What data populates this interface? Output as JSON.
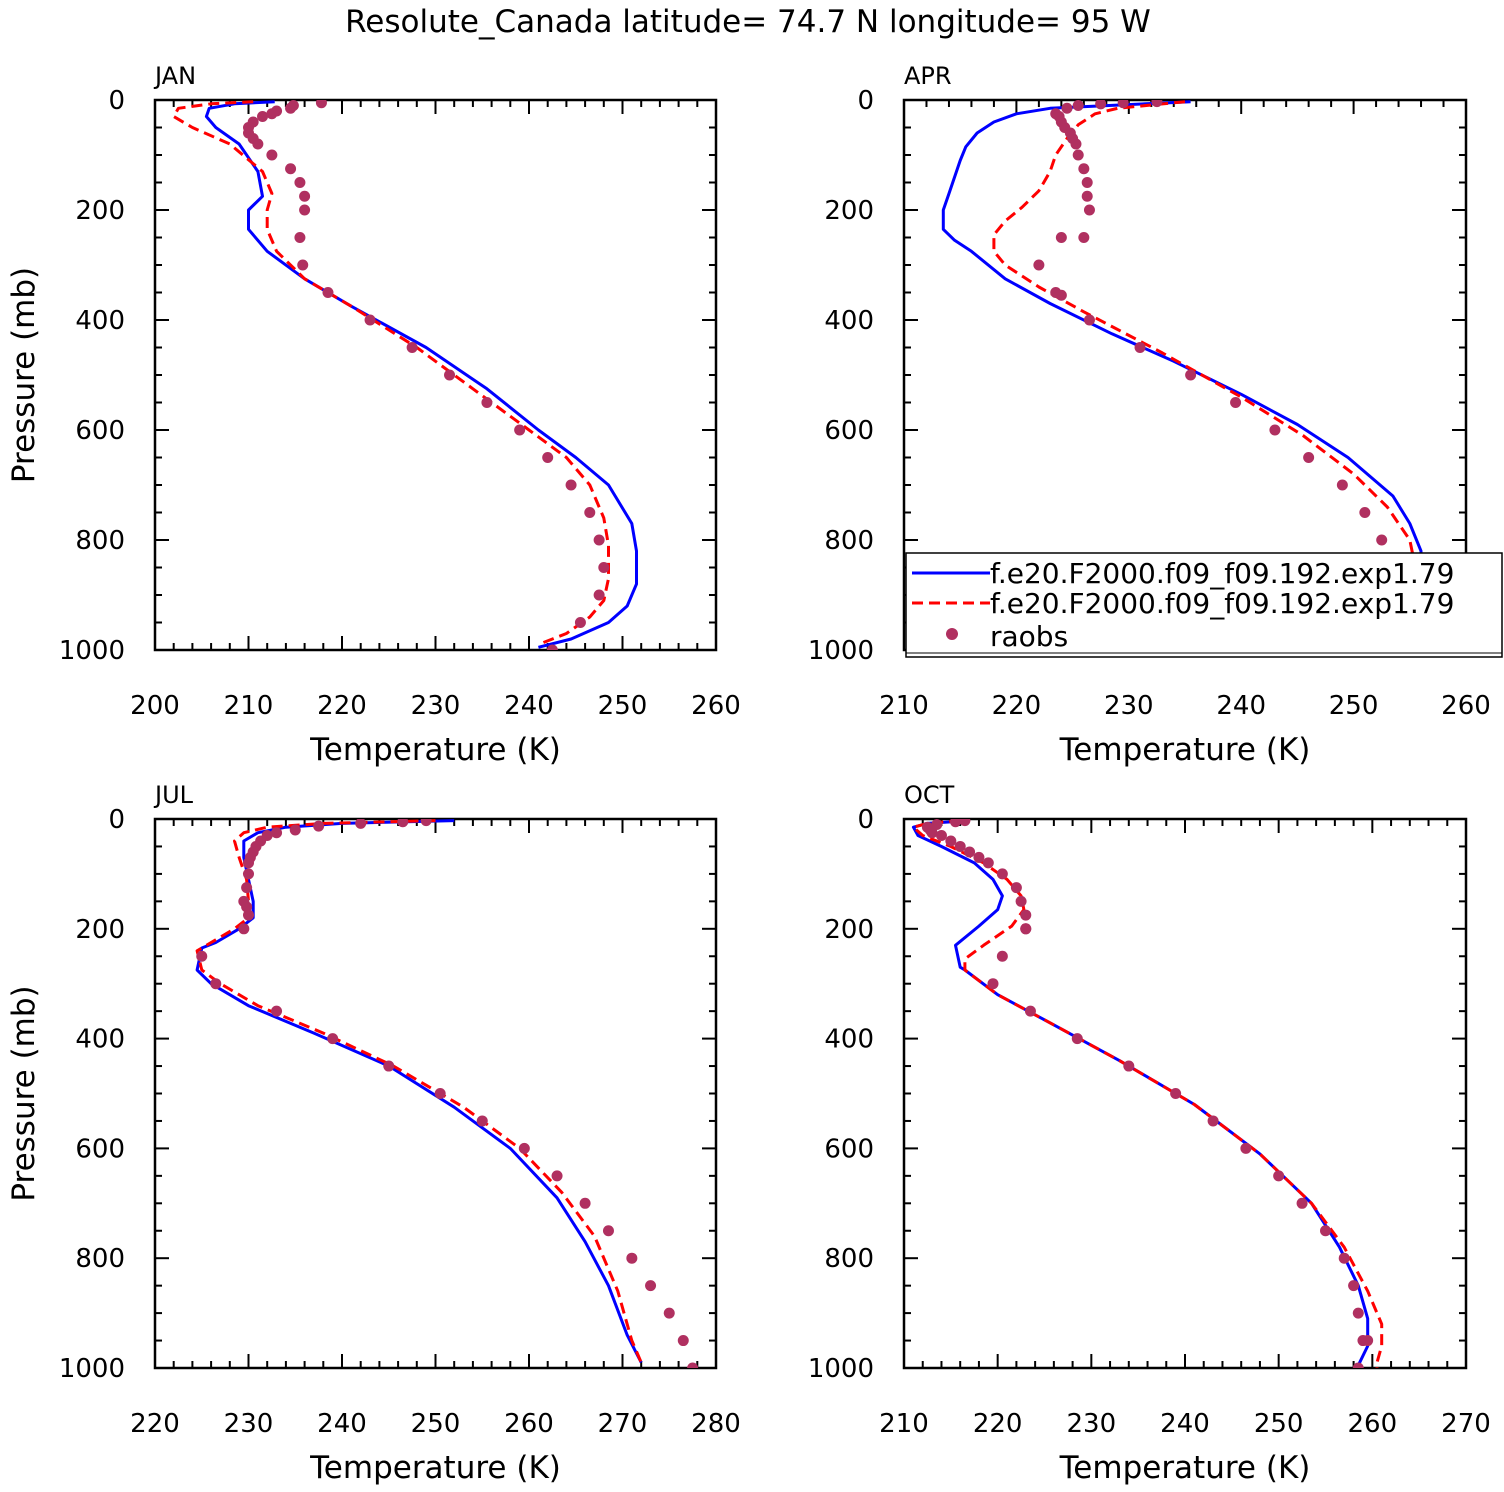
{
  "figure": {
    "title": "Resolute_Canada  latitude= 74.7 N longitude= 95 W"
  },
  "colors": {
    "model_1": "#0000ff",
    "model_2": "#ff0000",
    "raobs": "#b03060",
    "axes": "#000000"
  },
  "legend": {
    "placement": "lower-right of APR panel",
    "entries": [
      {
        "label": "f.e20.F2000.f09_f09.192.exp1.79",
        "style": "solid",
        "color": "#0000ff"
      },
      {
        "label": "f.e20.F2000.f09_f09.192.exp1.79",
        "style": "dashed",
        "color": "#ff0000"
      },
      {
        "label": "raobs",
        "style": "marker",
        "color": "#b03060"
      }
    ]
  },
  "chart_data": [
    {
      "type": "line",
      "panel": "JAN",
      "xlabel": "Temperature (K)",
      "ylabel": "Pressure (mb)",
      "xlim": [
        200,
        260
      ],
      "ylim": [
        0,
        1000
      ],
      "y_inverted": true,
      "xticks": [
        200,
        210,
        220,
        230,
        240,
        250,
        260
      ],
      "yticks": [
        0,
        200,
        400,
        600,
        800,
        1000
      ],
      "series": [
        {
          "style": "solid",
          "x": [
            212.8,
            208.5,
            205.8,
            205.5,
            206.5,
            209.0,
            211.0,
            211.5,
            210.0,
            210.0,
            212.0,
            216.0,
            221.0,
            229.0,
            235.5,
            241.0,
            245.0,
            248.5,
            251.0,
            251.5,
            251.5,
            250.5,
            248.5,
            244.5,
            241.0
          ],
          "y": [
            3,
            7,
            15,
            30,
            50,
            80,
            130,
            175,
            200,
            235,
            275,
            325,
            375,
            450,
            525,
            600,
            650,
            700,
            770,
            820,
            880,
            920,
            950,
            980,
            995
          ]
        },
        {
          "style": "dashed",
          "x": [
            210.5,
            206.0,
            202.5,
            202.0,
            204.0,
            208.0,
            211.5,
            212.5,
            212.0,
            212.0,
            213.0,
            216.0,
            221.0,
            228.0,
            234.0,
            240.0,
            244.0,
            246.5,
            248.0,
            248.5,
            248.5,
            248.0,
            246.5,
            244.0,
            241.0
          ],
          "y": [
            3,
            7,
            15,
            30,
            50,
            80,
            130,
            170,
            200,
            235,
            275,
            325,
            375,
            450,
            525,
            600,
            650,
            700,
            760,
            810,
            870,
            910,
            940,
            970,
            990
          ]
        }
      ],
      "points": {
        "x": [
          217.8,
          214.8,
          214.5,
          213.0,
          212.5,
          211.5,
          210.5,
          210.0,
          210.0,
          210.5,
          211.0,
          212.5,
          214.5,
          215.5,
          216.0,
          216.0,
          215.5,
          215.8,
          218.5,
          223.0,
          227.5,
          231.5,
          235.5,
          239.0,
          242.0,
          244.5,
          246.5,
          247.5,
          248.0,
          247.5,
          245.5,
          242.5
        ],
        "y": [
          5,
          10,
          15,
          20,
          25,
          30,
          40,
          50,
          60,
          70,
          80,
          100,
          125,
          150,
          175,
          200,
          250,
          300,
          350,
          400,
          450,
          500,
          550,
          600,
          650,
          700,
          750,
          800,
          850,
          900,
          950,
          1000
        ]
      }
    },
    {
      "type": "line",
      "panel": "APR",
      "xlabel": "Temperature (K)",
      "ylabel": "",
      "xlim": [
        210,
        260
      ],
      "ylim": [
        0,
        1000
      ],
      "y_inverted": true,
      "xticks": [
        210,
        220,
        230,
        240,
        250,
        260
      ],
      "yticks": [
        0,
        200,
        400,
        600,
        800,
        1000
      ],
      "series": [
        {
          "style": "solid",
          "x": [
            235.5,
            223.0,
            220.0,
            218.0,
            216.5,
            215.5,
            215.0,
            214.5,
            214.0,
            213.5,
            213.5,
            214.5,
            216.0,
            219.0,
            223.0,
            228.5,
            234.0,
            240.0,
            245.0,
            249.5,
            253.5,
            255.0,
            256.0,
            256.0,
            255.5,
            254.5,
            253.0,
            252.5
          ],
          "y": [
            3,
            15,
            25,
            40,
            60,
            85,
            110,
            140,
            170,
            200,
            235,
            255,
            275,
            325,
            370,
            425,
            475,
            535,
            590,
            650,
            720,
            770,
            820,
            870,
            920,
            950,
            975,
            990
          ]
        },
        {
          "style": "dashed",
          "x": [
            235.0,
            229.0,
            227.0,
            225.5,
            224.5,
            223.5,
            223.0,
            222.0,
            220.5,
            219.0,
            218.0,
            218.0,
            219.0,
            222.0,
            226.0,
            233.0,
            240.0,
            245.5,
            250.0,
            253.0,
            255.0,
            255.5,
            255.0,
            254.0,
            253.0,
            252.0
          ],
          "y": [
            3,
            15,
            25,
            45,
            70,
            100,
            130,
            165,
            195,
            220,
            245,
            275,
            300,
            340,
            385,
            460,
            540,
            610,
            680,
            740,
            800,
            850,
            900,
            930,
            960,
            990
          ]
        }
      ],
      "points": {
        "x": [
          232.5,
          229.5,
          227.5,
          225.5,
          224.5,
          223.5,
          223.8,
          224.0,
          224.3,
          224.8,
          225.0,
          225.3,
          225.5,
          226.0,
          226.3,
          226.3,
          226.5,
          226.0,
          224.0,
          222.0,
          223.5,
          224.0,
          226.5,
          231.0,
          235.5,
          239.5,
          243.0,
          246.0,
          249.0,
          251.0,
          252.5,
          253.5,
          254.0,
          254.0,
          253.0,
          250.5
        ],
        "y": [
          3,
          5,
          7,
          10,
          15,
          25,
          30,
          40,
          50,
          60,
          70,
          80,
          100,
          125,
          150,
          175,
          200,
          250,
          250,
          300,
          350,
          355,
          400,
          450,
          500,
          550,
          600,
          650,
          700,
          750,
          800,
          850,
          900,
          950,
          950,
          1000
        ]
      }
    },
    {
      "type": "line",
      "panel": "JUL",
      "xlabel": "Temperature (K)",
      "ylabel": "Pressure (mb)",
      "xlim": [
        220,
        280
      ],
      "ylim": [
        0,
        1000
      ],
      "y_inverted": true,
      "xticks": [
        220,
        230,
        240,
        250,
        260,
        270,
        280
      ],
      "yticks": [
        0,
        200,
        400,
        600,
        800,
        1000
      ],
      "series": [
        {
          "style": "solid",
          "x": [
            252.0,
            240.0,
            234.0,
            231.0,
            229.5,
            229.5,
            230.0,
            230.5,
            230.5,
            229.0,
            226.5,
            225.0,
            224.5,
            226.0,
            230.0,
            237.0,
            245.0,
            252.0,
            258.0,
            263.0,
            266.0,
            268.5,
            270.5,
            272.0
          ],
          "y": [
            3,
            8,
            15,
            25,
            40,
            70,
            110,
            150,
            180,
            200,
            225,
            235,
            275,
            300,
            340,
            390,
            450,
            525,
            600,
            690,
            770,
            850,
            940,
            990
          ]
        },
        {
          "style": "dashed",
          "x": [
            250.0,
            238.0,
            232.0,
            229.5,
            228.5,
            229.0,
            229.8,
            230.0,
            230.0,
            228.5,
            226.0,
            224.5,
            225.0,
            227.0,
            231.0,
            238.0,
            245.5,
            253.0,
            259.0,
            263.5,
            267.0,
            269.5,
            271.0,
            272.0
          ],
          "y": [
            3,
            8,
            15,
            25,
            40,
            70,
            110,
            150,
            180,
            200,
            225,
            240,
            275,
            300,
            340,
            390,
            450,
            525,
            600,
            680,
            760,
            860,
            950,
            990
          ]
        }
      ],
      "points": {
        "x": [
          249.0,
          246.5,
          242.0,
          237.5,
          235.0,
          233.0,
          232.0,
          231.3,
          230.8,
          230.5,
          230.2,
          230.0,
          230.0,
          229.8,
          229.5,
          229.8,
          230.0,
          229.5,
          225.0,
          226.5,
          233.0,
          239.0,
          245.0,
          250.5,
          255.0,
          259.5,
          263.0,
          266.0,
          268.5,
          271.0,
          273.0,
          275.0,
          276.5,
          277.5
        ],
        "y": [
          3,
          5,
          8,
          13,
          20,
          25,
          30,
          40,
          50,
          60,
          70,
          80,
          100,
          125,
          150,
          160,
          175,
          200,
          250,
          300,
          350,
          400,
          450,
          500,
          550,
          600,
          650,
          700,
          750,
          800,
          850,
          900,
          950,
          1000
        ]
      }
    },
    {
      "type": "line",
      "panel": "OCT",
      "xlabel": "Temperature (K)",
      "ylabel": "",
      "xlim": [
        210,
        270
      ],
      "ylim": [
        0,
        1000
      ],
      "y_inverted": true,
      "xticks": [
        210,
        220,
        230,
        240,
        250,
        260,
        270
      ],
      "yticks": [
        0,
        200,
        400,
        600,
        800,
        1000
      ],
      "series": [
        {
          "style": "solid",
          "x": [
            217.0,
            212.5,
            211.0,
            211.5,
            214.0,
            217.5,
            219.5,
            220.5,
            220.0,
            218.0,
            215.5,
            216.0,
            216.5,
            220.0,
            226.0,
            233.0,
            241.0,
            248.0,
            253.5,
            256.5,
            258.5,
            259.5,
            259.5,
            258.5
          ],
          "y": [
            3,
            8,
            15,
            30,
            50,
            80,
            110,
            140,
            165,
            195,
            230,
            270,
            275,
            320,
            375,
            440,
            520,
            610,
            700,
            780,
            850,
            910,
            960,
            995
          ]
        },
        {
          "style": "dashed",
          "x": [
            216.0,
            212.5,
            211.0,
            212.0,
            215.0,
            218.5,
            221.0,
            222.5,
            222.8,
            221.5,
            218.5,
            216.5,
            216.5,
            220.0,
            226.0,
            233.0,
            241.0,
            248.0,
            253.5,
            257.0,
            259.5,
            261.0,
            261.0,
            260.5,
            260.5
          ],
          "y": [
            3,
            8,
            15,
            30,
            50,
            80,
            110,
            140,
            165,
            195,
            230,
            255,
            275,
            320,
            375,
            440,
            520,
            610,
            700,
            780,
            860,
            920,
            960,
            990,
            1000
          ]
        }
      ],
      "points": {
        "x": [
          216.5,
          215.5,
          213.5,
          212.5,
          212.8,
          213.0,
          214.0,
          215.0,
          216.0,
          217.0,
          218.0,
          219.0,
          220.5,
          222.0,
          222.5,
          223.0,
          223.0,
          223.0,
          220.5,
          219.5,
          223.5,
          228.5,
          234.0,
          239.0,
          243.0,
          246.5,
          250.0,
          252.5,
          255.0,
          257.0,
          258.0,
          258.5,
          259.0,
          259.5,
          258.5
        ],
        "y": [
          3,
          5,
          10,
          15,
          20,
          25,
          30,
          40,
          50,
          60,
          70,
          80,
          100,
          125,
          150,
          175,
          200,
          200,
          250,
          300,
          350,
          400,
          450,
          500,
          550,
          600,
          650,
          700,
          750,
          800,
          850,
          900,
          950,
          950,
          1000
        ]
      }
    }
  ]
}
